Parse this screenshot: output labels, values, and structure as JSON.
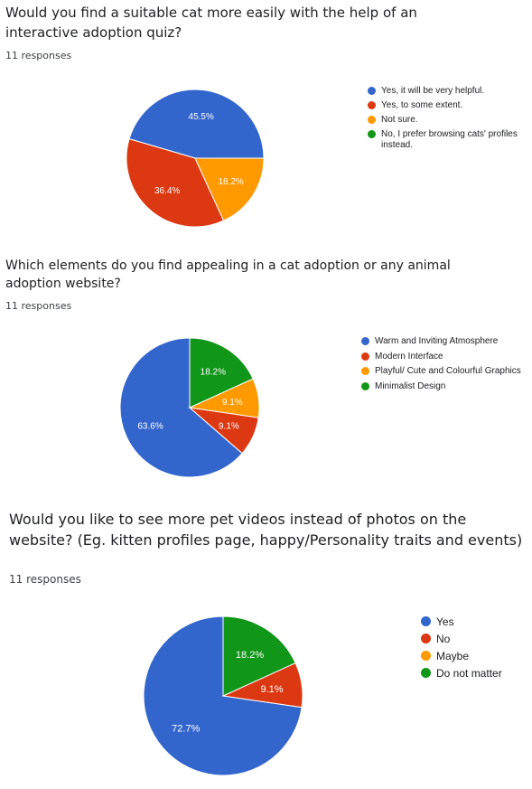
{
  "colors": {
    "blue": "#3366cc",
    "red": "#dc3912",
    "orange": "#ff9900",
    "green": "#109618"
  },
  "questions": [
    {
      "title": "Would you find a suitable cat more easily with the help of an interactive adoption quiz?",
      "responses": "11 responses",
      "chart_data": {
        "type": "pie",
        "title": "Would you find a suitable cat more easily with the help of an interactive adoption quiz?",
        "categories": [
          "Yes, it will be very helpful.",
          "Yes, to some extent.",
          "Not sure.",
          "No, I prefer browsing cats' profiles instead."
        ],
        "values": [
          45.5,
          36.4,
          18.2,
          0
        ],
        "labels": [
          "45.5%",
          "36.4%",
          "18.2%",
          ""
        ],
        "colors": [
          "#3366cc",
          "#dc3912",
          "#ff9900",
          "#109618"
        ],
        "legend": "right"
      }
    },
    {
      "title": "Which elements do you find appealing in a cat adoption or any animal adoption website?",
      "responses": "11 responses",
      "chart_data": {
        "type": "pie",
        "title": "Which elements do you find appealing in a cat adoption or any animal adoption website?",
        "categories": [
          "Warm and Inviting Atmosphere",
          "Modern Interface",
          "Playful/ Cute and Colourful Graphics",
          "Minimalist Design"
        ],
        "values": [
          63.6,
          9.1,
          9.1,
          18.2
        ],
        "labels": [
          "63.6%",
          "9.1%",
          "9.1%",
          "18.2%"
        ],
        "colors": [
          "#3366cc",
          "#dc3912",
          "#ff9900",
          "#109618"
        ],
        "legend": "right"
      }
    },
    {
      "title": "Would you like to see more pet videos instead of photos on the website? (Eg. kitten profiles page, happy/Personality traits and events)",
      "responses": "11 responses",
      "chart_data": {
        "type": "pie",
        "title": "Would you like to see more pet videos instead of photos on the website? (Eg. kitten profiles page, happy/Personality traits and events)",
        "categories": [
          "Yes",
          "No",
          "Maybe",
          "Do not matter"
        ],
        "values": [
          72.7,
          9.1,
          0,
          18.2
        ],
        "labels": [
          "72.7%",
          "9.1%",
          "",
          "18.2%"
        ],
        "colors": [
          "#3366cc",
          "#dc3912",
          "#ff9900",
          "#109618"
        ],
        "legend": "right"
      }
    }
  ]
}
